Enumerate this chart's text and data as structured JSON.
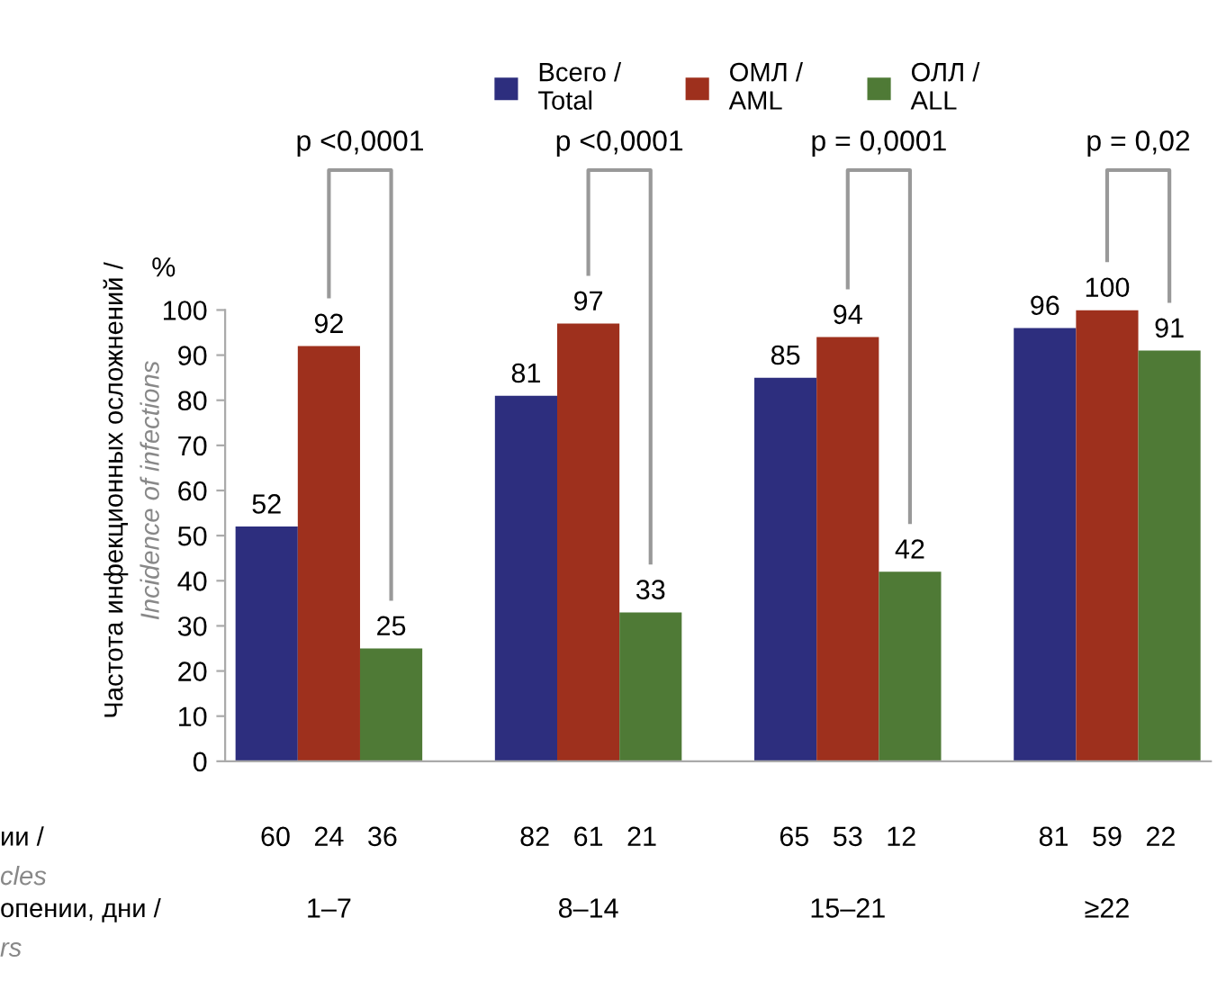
{
  "chart_data": {
    "type": "bar",
    "ylabel": "Частота инфекционных осложнений /\nIncidence of infections",
    "categories": [
      "1–7",
      "8–14",
      "15–21",
      "≥22"
    ],
    "series": [
      {
        "name": "Всего /\nTotal",
        "color": "#2d2e7e",
        "values": [
          52,
          81,
          85,
          96
        ]
      },
      {
        "name": "ОМЛ /\nAML",
        "color": "#9e301d",
        "values": [
          92,
          97,
          94,
          100
        ]
      },
      {
        "name": "ОЛЛ /\nALL",
        "color": "#4f7a36",
        "values": [
          25,
          33,
          42,
          91
        ]
      }
    ],
    "ylim": [
      0,
      100
    ],
    "yticks": [
      0,
      10,
      20,
      30,
      40,
      50,
      60,
      70,
      80,
      90,
      100
    ],
    "data_labels": true,
    "grid": false,
    "legend": "top",
    "annotations": [
      "%",
      "p <0,0001",
      "p <0,0001",
      "p = 0,0001",
      "p = 0,02",
      "ии /\ncles",
      "60   24   36",
      "82   61   21",
      "65   53   12",
      "81   59   22",
      "опении, дни /\nrs"
    ]
  }
}
